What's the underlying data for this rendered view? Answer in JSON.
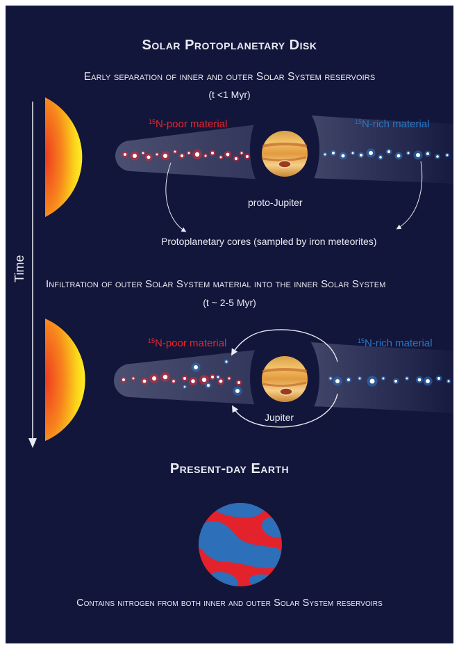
{
  "title": "Solar Protoplanetary Disk",
  "panel1": {
    "heading": "Early separation of inner and outer Solar System reservoirs",
    "time": "(t <1 Myr)",
    "poor_iso": "15",
    "poor_label": "N-poor material",
    "rich_iso": "15",
    "rich_label": "N-rich material",
    "planet_label": "proto-Jupiter",
    "cores_label": "Protoplanetary cores (sampled by iron meteorites)"
  },
  "time_axis_label": "Time",
  "panel2": {
    "heading": "Infiltration of outer Solar System material into the inner Solar System",
    "time": "(t ~ 2-5 Myr)",
    "poor_iso": "15",
    "poor_label": "N-poor material",
    "rich_iso": "15",
    "rich_label": "N-rich material",
    "planet_label": "Jupiter"
  },
  "earth": {
    "heading": "Present-day Earth",
    "caption": "Contains nitrogen from both inner and outer Solar System reservoirs"
  },
  "colors": {
    "background": "#13163b",
    "poor": "#e8252e",
    "rich": "#2a77c6",
    "text": "#e9ebf2"
  }
}
